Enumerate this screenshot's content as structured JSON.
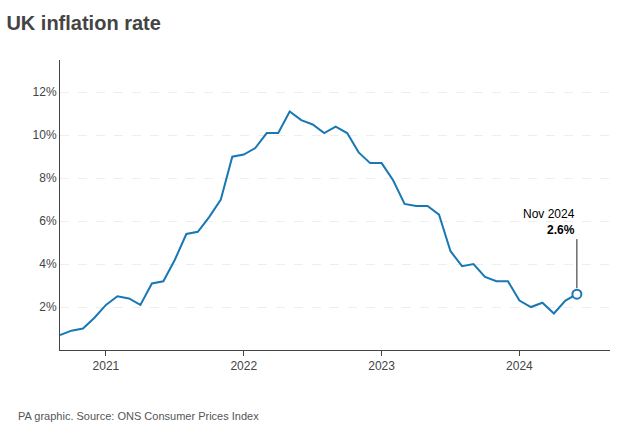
{
  "chart_data": {
    "type": "line",
    "title": "UK inflation rate",
    "source": "PA graphic. Source: ONS Consumer Prices Index",
    "annotations": [
      "Nov 2024",
      "2.6%"
    ],
    "categories": [
      null,
      null,
      null,
      null,
      "2021",
      null,
      null,
      null,
      null,
      null,
      null,
      null,
      null,
      null,
      null,
      null,
      "2022",
      null,
      null,
      null,
      null,
      null,
      null,
      null,
      null,
      null,
      null,
      null,
      "2023",
      null,
      null,
      null,
      null,
      null,
      null,
      null,
      null,
      null,
      null,
      null,
      "2024",
      null,
      null,
      null,
      null,
      null
    ],
    "series": [
      {
        "name": "UK inflation rate",
        "color": "#1878b4",
        "values": [
          0.7,
          0.9,
          1.0,
          1.5,
          2.1,
          2.5,
          2.4,
          2.1,
          3.1,
          3.2,
          4.2,
          5.4,
          5.5,
          6.2,
          7.0,
          9.0,
          9.1,
          9.4,
          10.1,
          10.1,
          11.1,
          10.7,
          10.5,
          10.1,
          10.4,
          10.1,
          9.2,
          8.7,
          8.7,
          7.9,
          6.8,
          6.7,
          6.7,
          6.3,
          4.6,
          3.9,
          4.0,
          3.4,
          3.2,
          3.2,
          2.3,
          2.0,
          2.2,
          1.7,
          2.3,
          2.6
        ]
      }
    ],
    "ylim": [
      0.0,
      13.5
    ],
    "yticks": [
      {
        "value": 2,
        "label": "2%"
      },
      {
        "value": 4,
        "label": "4%"
      },
      {
        "value": 6,
        "label": "6%"
      },
      {
        "value": 8,
        "label": "8%"
      },
      {
        "value": 10,
        "label": "10%"
      },
      {
        "value": 12,
        "label": "12%"
      }
    ],
    "grid": true
  }
}
